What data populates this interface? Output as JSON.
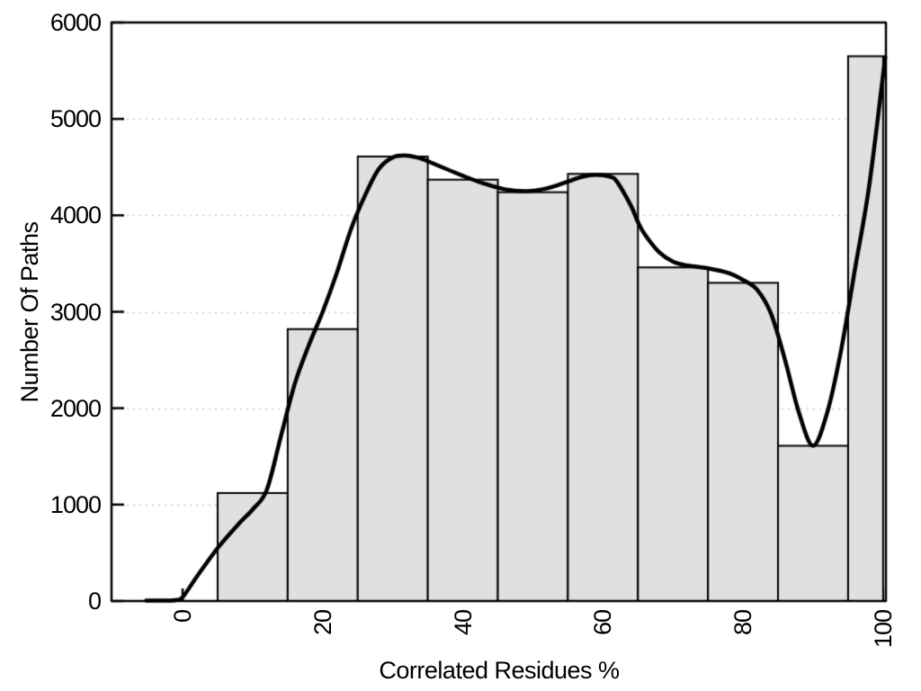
{
  "chart_data": {
    "type": "histogram",
    "title": "",
    "xlabel": "Correlated Residues %",
    "ylabel": "Number Of Paths",
    "xlim": [
      -10.15,
      100.4
    ],
    "ylim": [
      0,
      6000
    ],
    "x_ticks": [
      0,
      20,
      40,
      60,
      80,
      100
    ],
    "y_ticks": [
      0,
      1000,
      2000,
      3000,
      4000,
      5000,
      6000
    ],
    "grid": "horizontal-dotted-at-1000-to-5000",
    "legend": "none",
    "bins": [
      {
        "from": 5,
        "to": 15,
        "count": 1120
      },
      {
        "from": 15,
        "to": 25,
        "count": 2820
      },
      {
        "from": 25,
        "to": 35,
        "count": 4610
      },
      {
        "from": 35,
        "to": 45,
        "count": 4370
      },
      {
        "from": 45,
        "to": 55,
        "count": 4240
      },
      {
        "from": 55,
        "to": 65,
        "count": 4430
      },
      {
        "from": 65,
        "to": 75,
        "count": 3460
      },
      {
        "from": 75,
        "to": 85,
        "count": 3300
      },
      {
        "from": 85,
        "to": 95,
        "count": 1610
      },
      {
        "from": 95,
        "to": 100,
        "count": 5650
      }
    ],
    "smooth_curve": [
      [
        -5.2,
        5
      ],
      [
        -3,
        5
      ],
      [
        -1,
        10
      ],
      [
        0,
        40
      ],
      [
        2,
        250
      ],
      [
        5,
        550
      ],
      [
        8,
        800
      ],
      [
        10,
        950
      ],
      [
        12,
        1150
      ],
      [
        14,
        1700
      ],
      [
        16,
        2250
      ],
      [
        18,
        2650
      ],
      [
        20,
        3000
      ],
      [
        22,
        3400
      ],
      [
        24,
        3850
      ],
      [
        26,
        4200
      ],
      [
        28,
        4480
      ],
      [
        30,
        4600
      ],
      [
        32,
        4620
      ],
      [
        34,
        4590
      ],
      [
        36,
        4530
      ],
      [
        38,
        4470
      ],
      [
        40,
        4410
      ],
      [
        43,
        4330
      ],
      [
        46,
        4270
      ],
      [
        49,
        4250
      ],
      [
        52,
        4280
      ],
      [
        55,
        4350
      ],
      [
        57,
        4400
      ],
      [
        59,
        4420
      ],
      [
        61,
        4400
      ],
      [
        62,
        4350
      ],
      [
        64,
        4100
      ],
      [
        65,
        3930
      ],
      [
        66,
        3800
      ],
      [
        68,
        3620
      ],
      [
        70,
        3520
      ],
      [
        72,
        3480
      ],
      [
        75,
        3450
      ],
      [
        78,
        3400
      ],
      [
        80,
        3330
      ],
      [
        82,
        3230
      ],
      [
        84,
        2980
      ],
      [
        86,
        2500
      ],
      [
        88,
        1950
      ],
      [
        90,
        1610
      ],
      [
        92,
        1950
      ],
      [
        94,
        2600
      ],
      [
        96,
        3450
      ],
      [
        98,
        4300
      ],
      [
        100.3,
        5640
      ]
    ],
    "colors": {
      "background": "#ffffff",
      "bar_fill": "#e0e0e0",
      "bar_stroke": "#000000",
      "curve": "#000000",
      "grid": "#c8c8c8",
      "axis": "#000000",
      "text": "#000000"
    }
  }
}
